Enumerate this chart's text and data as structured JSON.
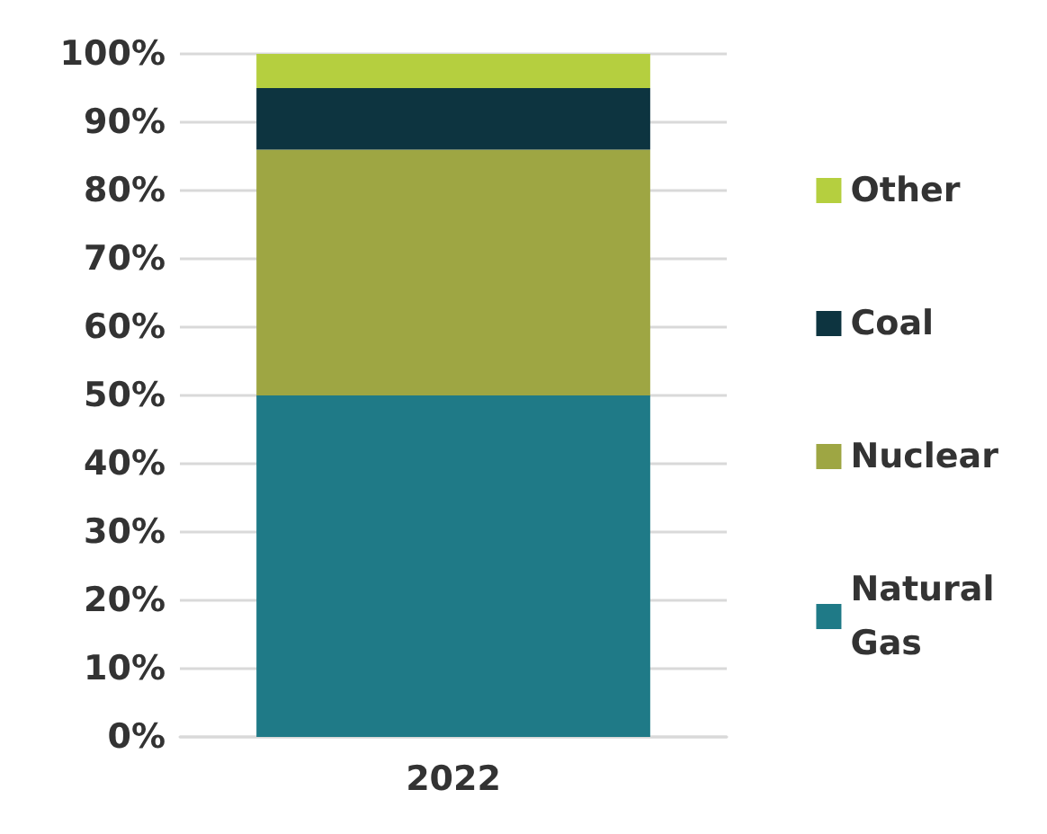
{
  "chart_data": {
    "type": "bar",
    "stacked": true,
    "categories": [
      "2022"
    ],
    "series": [
      {
        "name": "Natural Gas",
        "color": "#1f7a87",
        "values": [
          50
        ]
      },
      {
        "name": "Nuclear",
        "color": "#9ea643",
        "values": [
          36
        ]
      },
      {
        "name": "Coal",
        "color": "#0d3440",
        "values": [
          9
        ]
      },
      {
        "name": "Other",
        "color": "#b5cf3f",
        "values": [
          5
        ]
      }
    ],
    "ylim": [
      0,
      100
    ],
    "yticks": [
      {
        "value": 0,
        "label": "0%"
      },
      {
        "value": 10,
        "label": "10%"
      },
      {
        "value": 20,
        "label": "20%"
      },
      {
        "value": 30,
        "label": "30%"
      },
      {
        "value": 40,
        "label": "40%"
      },
      {
        "value": 50,
        "label": "50%"
      },
      {
        "value": 60,
        "label": "60%"
      },
      {
        "value": 70,
        "label": "70%"
      },
      {
        "value": 80,
        "label": "80%"
      },
      {
        "value": 90,
        "label": "90%"
      },
      {
        "value": 100,
        "label": "100%"
      }
    ],
    "grid": "y",
    "legend": "right"
  }
}
